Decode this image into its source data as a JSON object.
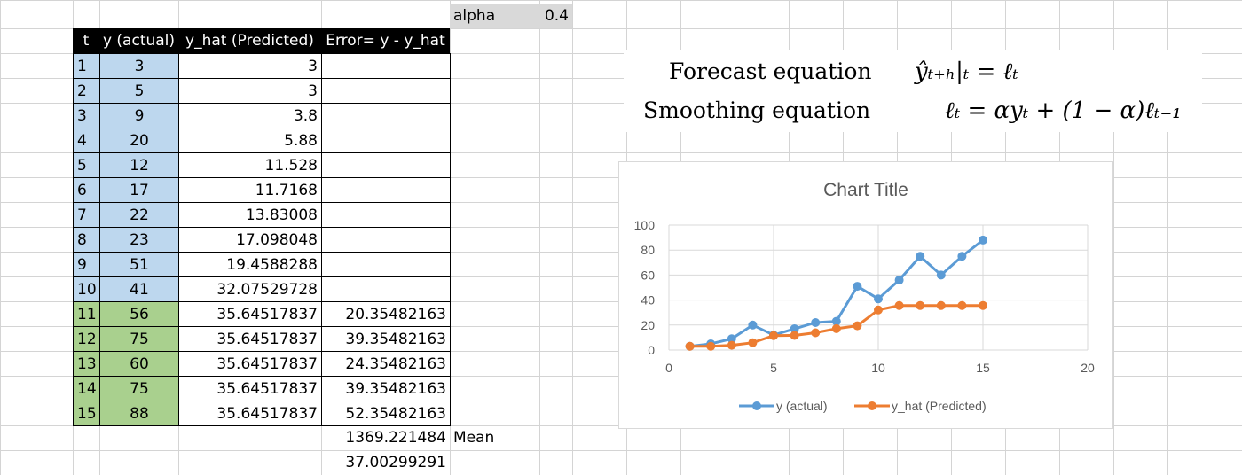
{
  "parameter": {
    "label": "alpha",
    "value": "0.4"
  },
  "table": {
    "headers": [
      "t",
      "y (actual)",
      "y_hat (Predicted)",
      "Error= y - y_hat"
    ],
    "rows": [
      {
        "t": "1",
        "y": "3",
        "yhat": "3",
        "err": ""
      },
      {
        "t": "2",
        "y": "5",
        "yhat": "3",
        "err": ""
      },
      {
        "t": "3",
        "y": "9",
        "yhat": "3.8",
        "err": ""
      },
      {
        "t": "4",
        "y": "20",
        "yhat": "5.88",
        "err": ""
      },
      {
        "t": "5",
        "y": "12",
        "yhat": "11.528",
        "err": ""
      },
      {
        "t": "6",
        "y": "17",
        "yhat": "11.7168",
        "err": ""
      },
      {
        "t": "7",
        "y": "22",
        "yhat": "13.83008",
        "err": ""
      },
      {
        "t": "8",
        "y": "23",
        "yhat": "17.098048",
        "err": ""
      },
      {
        "t": "9",
        "y": "51",
        "yhat": "19.4588288",
        "err": ""
      },
      {
        "t": "10",
        "y": "41",
        "yhat": "32.07529728",
        "err": ""
      },
      {
        "t": "11",
        "y": "56",
        "yhat": "35.64517837",
        "err": "20.35482163"
      },
      {
        "t": "12",
        "y": "75",
        "yhat": "35.64517837",
        "err": "39.35482163"
      },
      {
        "t": "13",
        "y": "60",
        "yhat": "35.64517837",
        "err": "24.35482163"
      },
      {
        "t": "14",
        "y": "75",
        "yhat": "35.64517837",
        "err": "39.35482163"
      },
      {
        "t": "15",
        "y": "88",
        "yhat": "35.64517837",
        "err": "52.35482163"
      }
    ]
  },
  "summary": {
    "mean_value": "1369.221484",
    "mean_label": "Mean",
    "sqrt_value": "37.00299291"
  },
  "equations": {
    "forecast_label": "Forecast equation",
    "forecast_formula": "ŷₜ₊ₕ|ₜ = ℓₜ",
    "smoothing_label": "Smoothing equation",
    "smoothing_formula": "ℓₜ = αyₜ + (1 − α)ℓₜ₋₁"
  },
  "chart_data": {
    "type": "line",
    "title": "Chart Title",
    "xlim": [
      0,
      20
    ],
    "ylim": [
      0,
      100
    ],
    "x_ticks": [
      "0",
      "5",
      "10",
      "15",
      "20"
    ],
    "y_ticks": [
      "0",
      "20",
      "40",
      "60",
      "80",
      "100"
    ],
    "x": [
      1,
      2,
      3,
      4,
      5,
      6,
      7,
      8,
      9,
      10,
      11,
      12,
      13,
      14,
      15
    ],
    "grid": true,
    "legend_position": "bottom",
    "series": [
      {
        "name": "y (actual)",
        "color": "#5b9bd5",
        "values": [
          3,
          5,
          9,
          20,
          12,
          17,
          22,
          23,
          51,
          41,
          56,
          75,
          60,
          75,
          88
        ]
      },
      {
        "name": "y_hat (Predicted)",
        "color": "#ed7d31",
        "values": [
          3,
          3,
          3.8,
          5.88,
          11.528,
          11.7168,
          13.83008,
          17.098048,
          19.4588288,
          32.07529728,
          35.64517837,
          35.64517837,
          35.64517837,
          35.64517837,
          35.64517837
        ]
      }
    ]
  }
}
